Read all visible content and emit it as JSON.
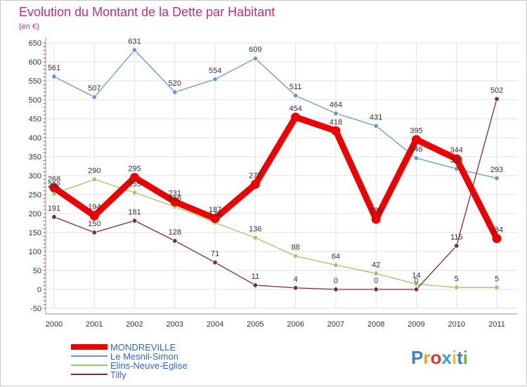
{
  "title": "Evolution du Montant de la Dette par Habitant",
  "subtitle": "(en €)",
  "brand": {
    "chars": [
      "P",
      "r",
      "o",
      "x",
      "i",
      "t",
      "i"
    ],
    "colors": [
      "#3a7fd0",
      "#f0a020",
      "#e03a2a",
      "#3a9fd0",
      "#f0c020",
      "#3a7fd0",
      "#70b030"
    ]
  },
  "chart_data": {
    "type": "line",
    "title": "Evolution du Montant de la Dette par Habitant",
    "subtitle": "(en €)",
    "x": [
      "2000",
      "2001",
      "2002",
      "2003",
      "2004",
      "2005",
      "2006",
      "2007",
      "2008",
      "2009",
      "2010",
      "2011"
    ],
    "ylim": [
      -50,
      650
    ],
    "yticks": [
      "-50",
      "0",
      "50",
      "100",
      "150",
      "200",
      "250",
      "300",
      "350",
      "400",
      "450",
      "500",
      "550",
      "600",
      "650"
    ],
    "grid": true,
    "legend_position": "bottom-left",
    "series": [
      {
        "name": "MONDREVILLE",
        "color": "#ee0000",
        "values": [
          268,
          194,
          295,
          231,
          187,
          277,
          454,
          418,
          185,
          395,
          344,
          134
        ],
        "labels": [
          "268",
          "194",
          "295",
          "231",
          "187",
          "277",
          "454",
          "418",
          "185",
          "395",
          "344",
          "134"
        ],
        "bold": true
      },
      {
        "name": "Le Mesnil-Simon",
        "color": "#6699cc",
        "values": [
          561,
          507,
          631,
          520,
          554,
          609,
          511,
          464,
          431,
          346,
          318,
          293
        ],
        "labels": [
          "561",
          "507",
          "631",
          "520",
          "554",
          "609",
          "511",
          "464",
          "431",
          "346",
          "318",
          "293"
        ]
      },
      {
        "name": "Elins-Neuve-Eglise",
        "color": "#99cc66",
        "values": [
          252,
          290,
          255,
          218,
          176,
          136,
          88,
          64,
          42,
          14,
          5,
          5
        ],
        "labels": [
          "252",
          "290",
          "255",
          "218",
          "176",
          "136",
          "88",
          "64",
          "42",
          "14",
          "5",
          "5"
        ]
      },
      {
        "name": "Tilly",
        "color": "#7a3030",
        "values": [
          191,
          150,
          181,
          128,
          71,
          11,
          4,
          0,
          0,
          0,
          115,
          502
        ],
        "labels": [
          "191",
          "150",
          "181",
          "128",
          "71",
          "11",
          "4",
          "0",
          "0",
          "0",
          "115",
          "502"
        ]
      }
    ]
  }
}
